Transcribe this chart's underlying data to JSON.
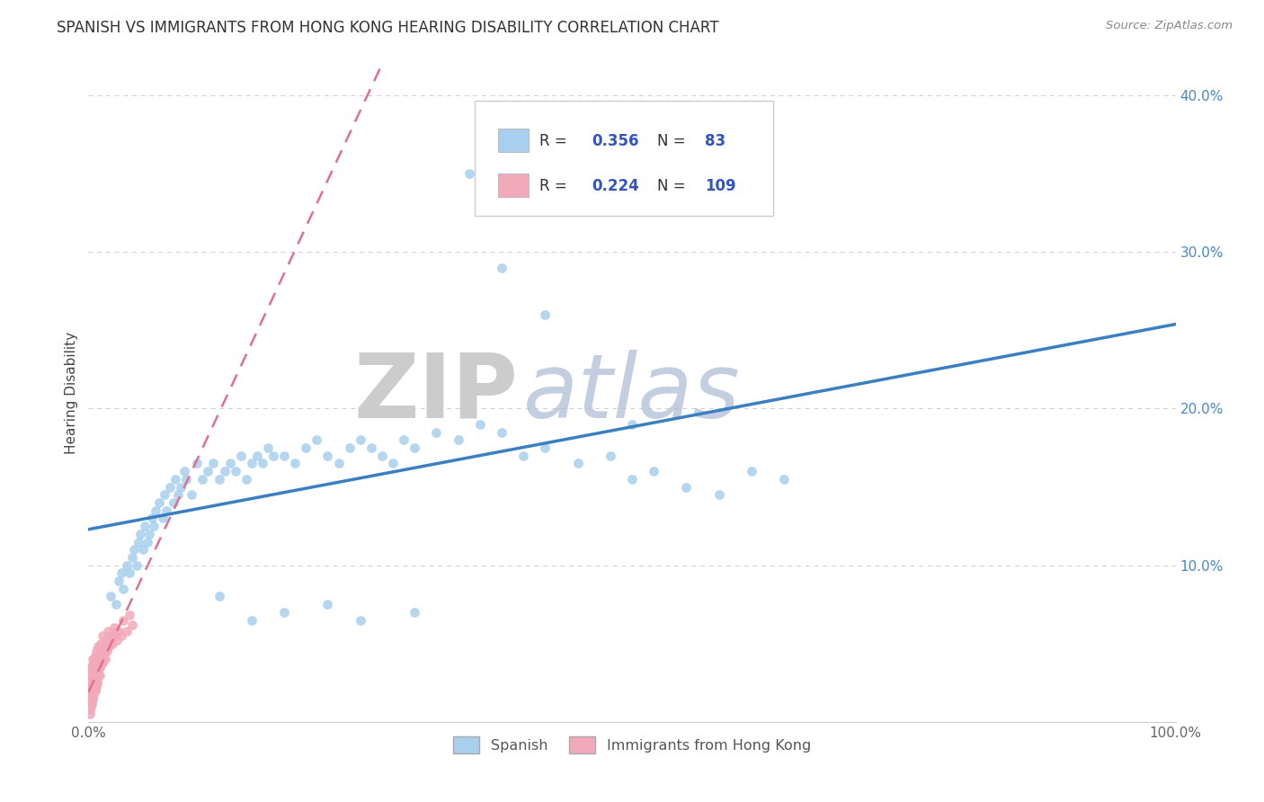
{
  "title": "SPANISH VS IMMIGRANTS FROM HONG KONG HEARING DISABILITY CORRELATION CHART",
  "source": "Source: ZipAtlas.com",
  "ylabel": "Hearing Disability",
  "watermark_part1": "ZIP",
  "watermark_part2": "atlas",
  "r_spanish": 0.356,
  "n_spanish": 83,
  "r_hk": 0.224,
  "n_hk": 109,
  "spanish_color": "#A8CFED",
  "hk_color": "#F2AABA",
  "trendline_spanish_color": "#3A7FC1",
  "trendline_hk_color": "#E07090",
  "background_color": "#FFFFFF",
  "grid_color": "#BBBBBB",
  "text_color_blue": "#3355BB",
  "text_color_dark": "#333333",
  "xlim": [
    0.0,
    1.0
  ],
  "ylim": [
    0.0,
    0.42
  ],
  "x_ticks": [
    0.0,
    0.2,
    0.4,
    0.6,
    0.8,
    1.0
  ],
  "y_ticks": [
    0.0,
    0.1,
    0.2,
    0.3,
    0.4
  ],
  "spanish_x": [
    0.02,
    0.025,
    0.028,
    0.03,
    0.032,
    0.035,
    0.038,
    0.04,
    0.042,
    0.044,
    0.046,
    0.048,
    0.05,
    0.052,
    0.054,
    0.056,
    0.058,
    0.06,
    0.062,
    0.065,
    0.068,
    0.07,
    0.072,
    0.075,
    0.078,
    0.08,
    0.082,
    0.085,
    0.088,
    0.09,
    0.095,
    0.1,
    0.105,
    0.11,
    0.115,
    0.12,
    0.125,
    0.13,
    0.135,
    0.14,
    0.145,
    0.15,
    0.155,
    0.16,
    0.165,
    0.17,
    0.18,
    0.19,
    0.2,
    0.21,
    0.22,
    0.23,
    0.24,
    0.25,
    0.26,
    0.27,
    0.28,
    0.29,
    0.3,
    0.32,
    0.34,
    0.36,
    0.38,
    0.4,
    0.42,
    0.45,
    0.48,
    0.5,
    0.52,
    0.55,
    0.58,
    0.61,
    0.64,
    0.5,
    0.42,
    0.38,
    0.35,
    0.3,
    0.25,
    0.22,
    0.18,
    0.15,
    0.12
  ],
  "spanish_y": [
    0.08,
    0.075,
    0.09,
    0.095,
    0.085,
    0.1,
    0.095,
    0.105,
    0.11,
    0.1,
    0.115,
    0.12,
    0.11,
    0.125,
    0.115,
    0.12,
    0.13,
    0.125,
    0.135,
    0.14,
    0.13,
    0.145,
    0.135,
    0.15,
    0.14,
    0.155,
    0.145,
    0.15,
    0.16,
    0.155,
    0.145,
    0.165,
    0.155,
    0.16,
    0.165,
    0.155,
    0.16,
    0.165,
    0.16,
    0.17,
    0.155,
    0.165,
    0.17,
    0.165,
    0.175,
    0.17,
    0.17,
    0.165,
    0.175,
    0.18,
    0.17,
    0.165,
    0.175,
    0.18,
    0.175,
    0.17,
    0.165,
    0.18,
    0.175,
    0.185,
    0.18,
    0.19,
    0.185,
    0.17,
    0.175,
    0.165,
    0.17,
    0.155,
    0.16,
    0.15,
    0.145,
    0.16,
    0.155,
    0.19,
    0.26,
    0.29,
    0.35,
    0.07,
    0.065,
    0.075,
    0.07,
    0.065,
    0.08
  ],
  "hk_x": [
    0.001,
    0.001,
    0.001,
    0.001,
    0.001,
    0.001,
    0.001,
    0.002,
    0.002,
    0.002,
    0.002,
    0.002,
    0.002,
    0.002,
    0.002,
    0.003,
    0.003,
    0.003,
    0.003,
    0.003,
    0.003,
    0.003,
    0.004,
    0.004,
    0.004,
    0.004,
    0.004,
    0.005,
    0.005,
    0.005,
    0.005,
    0.005,
    0.006,
    0.006,
    0.006,
    0.006,
    0.007,
    0.007,
    0.007,
    0.007,
    0.008,
    0.008,
    0.008,
    0.009,
    0.009,
    0.009,
    0.01,
    0.01,
    0.01,
    0.011,
    0.011,
    0.012,
    0.012,
    0.013,
    0.013,
    0.014,
    0.015,
    0.015,
    0.016,
    0.017,
    0.018,
    0.019,
    0.02,
    0.022,
    0.024,
    0.026,
    0.028,
    0.03,
    0.032,
    0.035,
    0.038,
    0.04,
    0.001,
    0.001,
    0.001,
    0.002,
    0.002,
    0.002,
    0.003,
    0.003,
    0.004,
    0.004,
    0.005,
    0.005,
    0.006,
    0.006,
    0.007,
    0.007,
    0.008,
    0.009,
    0.01,
    0.011,
    0.012,
    0.013,
    0.015,
    0.017,
    0.019,
    0.021,
    0.023,
    0.025,
    0.001,
    0.001,
    0.002,
    0.003,
    0.004,
    0.005,
    0.006,
    0.008,
    0.01
  ],
  "hk_y": [
    0.02,
    0.015,
    0.01,
    0.025,
    0.03,
    0.018,
    0.012,
    0.022,
    0.028,
    0.016,
    0.032,
    0.024,
    0.014,
    0.035,
    0.019,
    0.025,
    0.03,
    0.02,
    0.015,
    0.035,
    0.028,
    0.022,
    0.03,
    0.025,
    0.04,
    0.018,
    0.035,
    0.032,
    0.025,
    0.028,
    0.038,
    0.022,
    0.035,
    0.03,
    0.042,
    0.025,
    0.038,
    0.032,
    0.028,
    0.045,
    0.035,
    0.03,
    0.04,
    0.035,
    0.048,
    0.03,
    0.04,
    0.035,
    0.045,
    0.038,
    0.05,
    0.04,
    0.045,
    0.038,
    0.055,
    0.042,
    0.048,
    0.04,
    0.052,
    0.045,
    0.058,
    0.048,
    0.055,
    0.05,
    0.06,
    0.052,
    0.058,
    0.055,
    0.065,
    0.058,
    0.068,
    0.062,
    0.008,
    0.012,
    0.018,
    0.01,
    0.015,
    0.02,
    0.012,
    0.018,
    0.015,
    0.022,
    0.018,
    0.025,
    0.02,
    0.028,
    0.022,
    0.03,
    0.025,
    0.032,
    0.035,
    0.038,
    0.04,
    0.042,
    0.045,
    0.048,
    0.05,
    0.052,
    0.055,
    0.058,
    0.005,
    0.008,
    0.01,
    0.012,
    0.015,
    0.018,
    0.02,
    0.025,
    0.03
  ]
}
